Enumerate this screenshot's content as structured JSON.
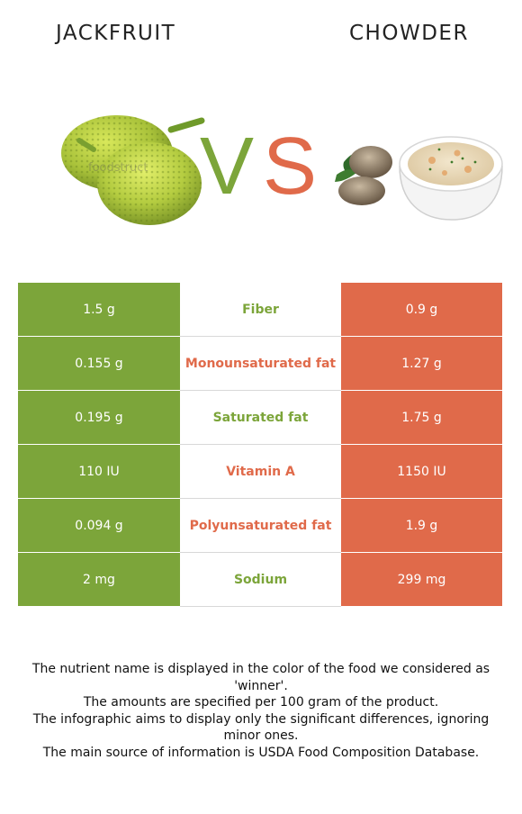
{
  "foods": {
    "left": {
      "name": "JACKFRUIT",
      "color": "#7ca53a"
    },
    "right": {
      "name": "CHOWDER",
      "color": "#e06a4a"
    }
  },
  "vs": {
    "v": "V",
    "s": "S"
  },
  "watermark": "foodstruct",
  "rows": [
    {
      "nutrient": "Fiber",
      "left": "1.5 g",
      "right": "0.9 g",
      "winner": "left"
    },
    {
      "nutrient": "Monounsaturated fat",
      "left": "0.155 g",
      "right": "1.27 g",
      "winner": "right"
    },
    {
      "nutrient": "Saturated fat",
      "left": "0.195 g",
      "right": "1.75 g",
      "winner": "left"
    },
    {
      "nutrient": "Vitamin A",
      "left": "110 IU",
      "right": "1150 IU",
      "winner": "right"
    },
    {
      "nutrient": "Polyunsaturated fat",
      "left": "0.094 g",
      "right": "1.9 g",
      "winner": "right"
    },
    {
      "nutrient": "Sodium",
      "left": "2 mg",
      "right": "299 mg",
      "winner": "left"
    }
  ],
  "footnote": [
    "The nutrient name is displayed in the color of the food we considered as 'winner'.",
    "The amounts are specified per 100 gram of the product.",
    "The infographic aims to display only the significant differences, ignoring minor ones.",
    "The main source of information is USDA Food Composition Database."
  ]
}
